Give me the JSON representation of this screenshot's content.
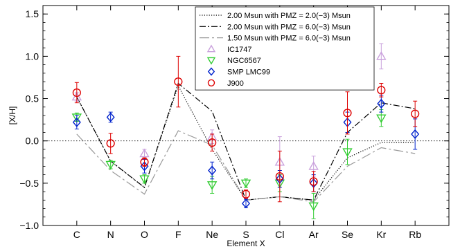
{
  "chart_data": {
    "type": "scatter",
    "xlabel": "Element X",
    "ylabel": "[X/H]",
    "ylim": [
      -1.0,
      1.6
    ],
    "yticks": [
      -1.0,
      -0.5,
      0.0,
      0.5,
      1.0,
      1.5
    ],
    "ytick_labels": [
      "−1.0",
      "−0.5",
      "0.0",
      "0.5",
      "1.0",
      "1.5"
    ],
    "categories": [
      "C",
      "N",
      "O",
      "F",
      "Ne",
      "S",
      "Cl",
      "Ar",
      "Se",
      "Kr",
      "Rb"
    ],
    "legend_position": "top-right",
    "models": [
      {
        "name": "2.00 Msun with PMZ = 2.0(−3) Msun",
        "style": "dotted",
        "color": "#000000",
        "values": [
          0.52,
          -0.24,
          -0.55,
          0.65,
          -0.1,
          -0.7,
          -0.66,
          -0.7,
          -0.2,
          -0.02,
          -0.02
        ]
      },
      {
        "name": "2.00 Msun with PMZ = 6.0(−3) Msun",
        "style": "dashdot",
        "color": "#000000",
        "values": [
          0.52,
          -0.24,
          -0.55,
          0.68,
          0.35,
          -0.7,
          -0.66,
          -0.7,
          0.1,
          0.45,
          0.38
        ]
      },
      {
        "name": "1.50 Msun with PMZ = 6.0(−3) Msun",
        "style": "longdash-dot",
        "color": "#999999",
        "values": [
          0.08,
          -0.35,
          -0.63,
          0.12,
          -0.05,
          -0.7,
          -0.66,
          -0.72,
          -0.3,
          -0.08,
          -0.15
        ]
      }
    ],
    "series": [
      {
        "name": "IC1747",
        "marker": "triangle-up",
        "color": "#c9a0dc",
        "points": [
          {
            "x": "C",
            "y": 0.52,
            "err": 0.05
          },
          {
            "x": "O",
            "y": -0.15,
            "err": 0.05
          },
          {
            "x": "Ne",
            "y": 0.05,
            "err": 0.08
          },
          {
            "x": "Cl",
            "y": -0.25,
            "err": 0.3
          },
          {
            "x": "Ar",
            "y": -0.3,
            "err": 0.12
          },
          {
            "x": "Kr",
            "y": 1.0,
            "err": 0.15
          }
        ]
      },
      {
        "name": "NGC6567",
        "marker": "triangle-down",
        "color": "#33cc33",
        "points": [
          {
            "x": "C",
            "y": 0.28,
            "err": 0.05
          },
          {
            "x": "N",
            "y": -0.28,
            "err": 0.05
          },
          {
            "x": "O",
            "y": -0.45,
            "err": 0.05
          },
          {
            "x": "Ne",
            "y": -0.52,
            "err": 0.1
          },
          {
            "x": "S",
            "y": -0.5,
            "err": 0.05
          },
          {
            "x": "Cl",
            "y": -0.5,
            "err": 0.1
          },
          {
            "x": "Ar",
            "y": -0.77,
            "err": 0.15
          },
          {
            "x": "Se",
            "y": -0.13,
            "err": 0.15
          },
          {
            "x": "Kr",
            "y": 0.27,
            "err": 0.1
          }
        ]
      },
      {
        "name": "SMP LMC99",
        "marker": "diamond",
        "color": "#0022cc",
        "points": [
          {
            "x": "C",
            "y": 0.22,
            "err": 0.08
          },
          {
            "x": "N",
            "y": 0.28,
            "err": 0.06
          },
          {
            "x": "O",
            "y": -0.3,
            "err": 0.08
          },
          {
            "x": "Ne",
            "y": -0.35,
            "err": 0.1
          },
          {
            "x": "S",
            "y": -0.74,
            "err": 0.05
          },
          {
            "x": "Cl",
            "y": -0.45,
            "err": 0.1
          },
          {
            "x": "Ar",
            "y": -0.5,
            "err": 0.1
          },
          {
            "x": "Se",
            "y": 0.22,
            "err": 0.12
          },
          {
            "x": "Kr",
            "y": 0.44,
            "err": 0.1
          },
          {
            "x": "Rb",
            "y": 0.08,
            "err": 0.18
          }
        ]
      },
      {
        "name": "J900",
        "marker": "circle",
        "color": "#dd0000",
        "points": [
          {
            "x": "C",
            "y": 0.57,
            "err": 0.12
          },
          {
            "x": "N",
            "y": -0.03,
            "err": 0.12
          },
          {
            "x": "O",
            "y": -0.25,
            "err": 0.05
          },
          {
            "x": "F",
            "y": 0.7,
            "err": 0.3
          },
          {
            "x": "Ne",
            "y": -0.02,
            "err": 0.1
          },
          {
            "x": "S",
            "y": -0.63,
            "err": 0.05
          },
          {
            "x": "Cl",
            "y": -0.42,
            "err": 0.3
          },
          {
            "x": "Ar",
            "y": -0.48,
            "err": 0.12
          },
          {
            "x": "Se",
            "y": 0.33,
            "err": 0.25
          },
          {
            "x": "Kr",
            "y": 0.6,
            "err": 0.08
          },
          {
            "x": "Rb",
            "y": 0.32,
            "err": 0.15
          }
        ]
      }
    ]
  }
}
